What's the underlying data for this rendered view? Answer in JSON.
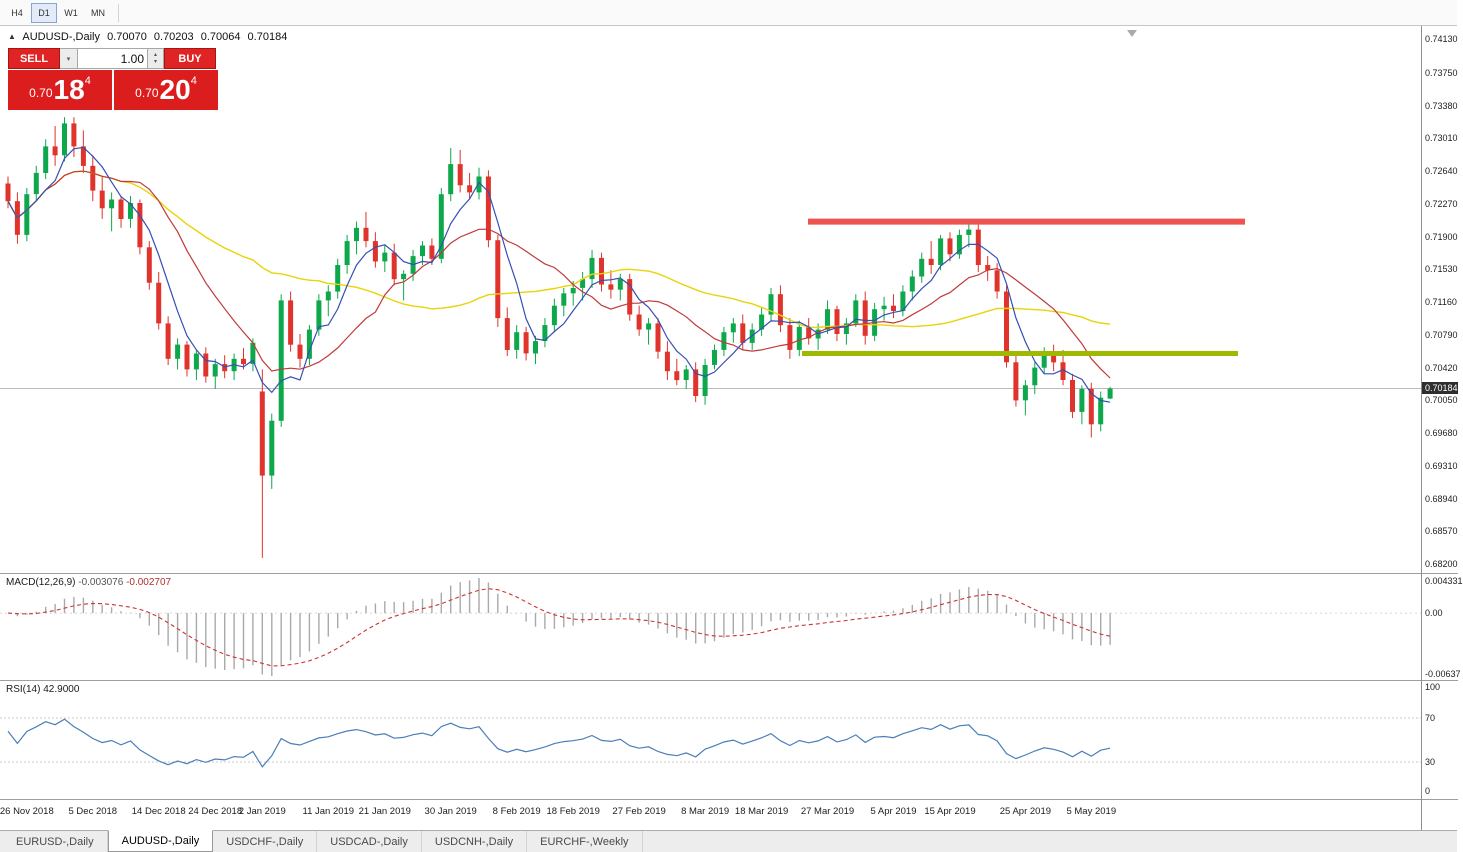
{
  "toolbar": {
    "timeframes": [
      {
        "label": "H4",
        "active": false
      },
      {
        "label": "D1",
        "active": true
      },
      {
        "label": "W1",
        "active": false
      },
      {
        "label": "MN",
        "active": false
      }
    ]
  },
  "title": {
    "symbol": "AUDUSD-,Daily",
    "open": "0.70070",
    "high": "0.70203",
    "low": "0.70064",
    "close": "0.70184"
  },
  "trade_panel": {
    "sell_label": "SELL",
    "buy_label": "BUY",
    "volume": "1.00",
    "sell_price": {
      "prefix": "0.70",
      "big": "18",
      "sup": "4"
    },
    "buy_price": {
      "prefix": "0.70",
      "big": "20",
      "sup": "4"
    }
  },
  "price_scale": {
    "labels": [
      "0.74130",
      "0.73750",
      "0.73380",
      "0.73010",
      "0.72640",
      "0.72270",
      "0.71900",
      "0.71530",
      "0.71160",
      "0.70790",
      "0.70420",
      "0.70050",
      "0.69680",
      "0.69310",
      "0.68940",
      "0.68570",
      "0.68200"
    ],
    "current": "0.70184"
  },
  "macd_panel": {
    "name": "MACD(12,26,9)",
    "value1": "-0.003076",
    "value2": "-0.002707",
    "scale_max": "0.004331",
    "scale_zero": "0.00",
    "scale_min": "-0.00637"
  },
  "rsi_panel": {
    "name": "RSI(14)",
    "value": "42.9000",
    "scale_labels": [
      "100",
      "70",
      "30",
      "0"
    ],
    "level_lines": [
      70,
      30
    ]
  },
  "xaxis": [
    {
      "label": "26 Nov 2018",
      "i": 2
    },
    {
      "label": "5 Dec 2018",
      "i": 9
    },
    {
      "label": "14 Dec 2018",
      "i": 16
    },
    {
      "label": "24 Dec 2018",
      "i": 22
    },
    {
      "label": "2 Jan 2019",
      "i": 27
    },
    {
      "label": "11 Jan 2019",
      "i": 34
    },
    {
      "label": "21 Jan 2019",
      "i": 40
    },
    {
      "label": "30 Jan 2019",
      "i": 47
    },
    {
      "label": "8 Feb 2019",
      "i": 54
    },
    {
      "label": "18 Feb 2019",
      "i": 60
    },
    {
      "label": "27 Feb 2019",
      "i": 67
    },
    {
      "label": "8 Mar 2019",
      "i": 74
    },
    {
      "label": "18 Mar 2019",
      "i": 80
    },
    {
      "label": "27 Mar 2019",
      "i": 87
    },
    {
      "label": "5 Apr 2019",
      "i": 94
    },
    {
      "label": "15 Apr 2019",
      "i": 100
    },
    {
      "label": "25 Apr 2019",
      "i": 108
    },
    {
      "label": "5 May 2019",
      "i": 115
    }
  ],
  "tabs": [
    {
      "label": "EURUSD-,Daily",
      "active": false
    },
    {
      "label": "AUDUSD-,Daily",
      "active": true
    },
    {
      "label": "USDCHF-,Daily",
      "active": false
    },
    {
      "label": "USDCAD-,Daily",
      "active": false
    },
    {
      "label": "USDCNH-,Daily",
      "active": false
    },
    {
      "label": "EURCHF-,Weekly",
      "active": false
    }
  ],
  "chart_data": {
    "type": "candlestick",
    "symbol": "AUDUSD",
    "timeframe": "Daily",
    "title": "AUDUSD-,Daily 0.70070 0.70203 0.70064 0.70184",
    "x_range": [
      "26 Nov 2018",
      "8 May 2019"
    ],
    "y_range": [
      0.682,
      0.7413
    ],
    "current_price": 0.70184,
    "candles": [
      [
        0.725,
        0.7258,
        0.7222,
        0.723
      ],
      [
        0.723,
        0.724,
        0.7182,
        0.7192
      ],
      [
        0.7192,
        0.7245,
        0.7185,
        0.7238
      ],
      [
        0.7238,
        0.727,
        0.723,
        0.7262
      ],
      [
        0.7262,
        0.73,
        0.7255,
        0.7292
      ],
      [
        0.7292,
        0.7315,
        0.727,
        0.7282
      ],
      [
        0.7282,
        0.7325,
        0.7275,
        0.7318
      ],
      [
        0.7318,
        0.7325,
        0.728,
        0.7292
      ],
      [
        0.7292,
        0.731,
        0.7262,
        0.727
      ],
      [
        0.727,
        0.7282,
        0.723,
        0.7242
      ],
      [
        0.7242,
        0.7258,
        0.721,
        0.7222
      ],
      [
        0.7222,
        0.724,
        0.7196,
        0.7232
      ],
      [
        0.7232,
        0.7236,
        0.72,
        0.721
      ],
      [
        0.721,
        0.7236,
        0.72,
        0.7228
      ],
      [
        0.7228,
        0.7232,
        0.717,
        0.7178
      ],
      [
        0.7178,
        0.7185,
        0.713,
        0.7138
      ],
      [
        0.7138,
        0.715,
        0.7085,
        0.7092
      ],
      [
        0.7092,
        0.71,
        0.7045,
        0.7052
      ],
      [
        0.7052,
        0.7075,
        0.704,
        0.7068
      ],
      [
        0.7068,
        0.7072,
        0.7032,
        0.704
      ],
      [
        0.704,
        0.7062,
        0.7028,
        0.7058
      ],
      [
        0.7058,
        0.7065,
        0.7025,
        0.7032
      ],
      [
        0.7032,
        0.7052,
        0.7018,
        0.7046
      ],
      [
        0.7046,
        0.7056,
        0.703,
        0.7038
      ],
      [
        0.7038,
        0.7058,
        0.7028,
        0.7052
      ],
      [
        0.7052,
        0.7064,
        0.704,
        0.7046
      ],
      [
        0.7046,
        0.7075,
        0.7038,
        0.707
      ],
      [
        0.7015,
        0.704,
        0.6827,
        0.692
      ],
      [
        0.692,
        0.699,
        0.6905,
        0.6982
      ],
      [
        0.6982,
        0.7125,
        0.6975,
        0.7118
      ],
      [
        0.7118,
        0.7128,
        0.706,
        0.7068
      ],
      [
        0.7068,
        0.708,
        0.7042,
        0.7052
      ],
      [
        0.7052,
        0.709,
        0.7045,
        0.7085
      ],
      [
        0.7085,
        0.7125,
        0.7078,
        0.7118
      ],
      [
        0.7118,
        0.7135,
        0.71,
        0.7128
      ],
      [
        0.7128,
        0.7165,
        0.712,
        0.7158
      ],
      [
        0.7158,
        0.7192,
        0.7148,
        0.7185
      ],
      [
        0.7185,
        0.7207,
        0.717,
        0.72
      ],
      [
        0.72,
        0.7218,
        0.7178,
        0.7185
      ],
      [
        0.7185,
        0.7195,
        0.7155,
        0.7162
      ],
      [
        0.7162,
        0.718,
        0.715,
        0.7172
      ],
      [
        0.7172,
        0.7182,
        0.7135,
        0.7142
      ],
      [
        0.7142,
        0.7152,
        0.7118,
        0.7148
      ],
      [
        0.7148,
        0.7175,
        0.714,
        0.7168
      ],
      [
        0.7168,
        0.7185,
        0.7158,
        0.718
      ],
      [
        0.718,
        0.7188,
        0.7158,
        0.7165
      ],
      [
        0.7165,
        0.7245,
        0.716,
        0.7238
      ],
      [
        0.7238,
        0.729,
        0.723,
        0.7272
      ],
      [
        0.7272,
        0.7288,
        0.724,
        0.7248
      ],
      [
        0.7248,
        0.7262,
        0.7232,
        0.724
      ],
      [
        0.724,
        0.7268,
        0.7232,
        0.7258
      ],
      [
        0.7258,
        0.7265,
        0.7178,
        0.7186
      ],
      [
        0.7186,
        0.7192,
        0.7088,
        0.7098
      ],
      [
        0.7098,
        0.711,
        0.7055,
        0.7062
      ],
      [
        0.7062,
        0.709,
        0.7052,
        0.7082
      ],
      [
        0.7082,
        0.7088,
        0.705,
        0.7058
      ],
      [
        0.7058,
        0.7078,
        0.7046,
        0.7072
      ],
      [
        0.7072,
        0.7098,
        0.7065,
        0.709
      ],
      [
        0.709,
        0.712,
        0.7082,
        0.7112
      ],
      [
        0.7112,
        0.7132,
        0.71,
        0.7126
      ],
      [
        0.7126,
        0.714,
        0.7112,
        0.7132
      ],
      [
        0.7132,
        0.715,
        0.7118,
        0.7142
      ],
      [
        0.7142,
        0.7175,
        0.7132,
        0.7166
      ],
      [
        0.7166,
        0.7172,
        0.7128,
        0.7136
      ],
      [
        0.7136,
        0.7152,
        0.712,
        0.713
      ],
      [
        0.713,
        0.7148,
        0.7118,
        0.7142
      ],
      [
        0.7142,
        0.7148,
        0.7095,
        0.7102
      ],
      [
        0.7102,
        0.7112,
        0.7078,
        0.7085
      ],
      [
        0.7085,
        0.7098,
        0.7068,
        0.7092
      ],
      [
        0.7092,
        0.7098,
        0.7052,
        0.706
      ],
      [
        0.706,
        0.7072,
        0.7028,
        0.7038
      ],
      [
        0.7038,
        0.7052,
        0.7022,
        0.7028
      ],
      [
        0.7028,
        0.7045,
        0.7018,
        0.704
      ],
      [
        0.704,
        0.7048,
        0.7003,
        0.701
      ],
      [
        0.701,
        0.7052,
        0.7,
        0.7045
      ],
      [
        0.7045,
        0.7068,
        0.704,
        0.7062
      ],
      [
        0.7062,
        0.7088,
        0.7055,
        0.7082
      ],
      [
        0.7082,
        0.7098,
        0.707,
        0.7092
      ],
      [
        0.7092,
        0.7102,
        0.7062,
        0.707
      ],
      [
        0.707,
        0.7092,
        0.7062,
        0.7085
      ],
      [
        0.7085,
        0.711,
        0.7078,
        0.7102
      ],
      [
        0.7102,
        0.7132,
        0.7095,
        0.7125
      ],
      [
        0.7125,
        0.7135,
        0.7082,
        0.709
      ],
      [
        0.709,
        0.7098,
        0.7052,
        0.7062
      ],
      [
        0.7062,
        0.7095,
        0.7055,
        0.7088
      ],
      [
        0.7088,
        0.7098,
        0.7068,
        0.7075
      ],
      [
        0.7075,
        0.7092,
        0.7062,
        0.7085
      ],
      [
        0.7085,
        0.7118,
        0.708,
        0.7108
      ],
      [
        0.7108,
        0.7112,
        0.7072,
        0.708
      ],
      [
        0.708,
        0.7098,
        0.7068,
        0.7092
      ],
      [
        0.7092,
        0.7125,
        0.7088,
        0.7118
      ],
      [
        0.7118,
        0.7128,
        0.7068,
        0.7078
      ],
      [
        0.7078,
        0.7115,
        0.7072,
        0.7108
      ],
      [
        0.7108,
        0.7122,
        0.7095,
        0.7112
      ],
      [
        0.7112,
        0.7125,
        0.7098,
        0.7106
      ],
      [
        0.7106,
        0.7135,
        0.71,
        0.7128
      ],
      [
        0.7128,
        0.7152,
        0.7118,
        0.7145
      ],
      [
        0.7145,
        0.7172,
        0.7138,
        0.7165
      ],
      [
        0.7165,
        0.7185,
        0.7148,
        0.7158
      ],
      [
        0.7158,
        0.7192,
        0.7152,
        0.7188
      ],
      [
        0.7188,
        0.7195,
        0.7162,
        0.717
      ],
      [
        0.717,
        0.7198,
        0.7165,
        0.7192
      ],
      [
        0.7192,
        0.7206,
        0.7178,
        0.7198
      ],
      [
        0.7198,
        0.7205,
        0.715,
        0.7158
      ],
      [
        0.7158,
        0.7168,
        0.714,
        0.7152
      ],
      [
        0.7152,
        0.716,
        0.712,
        0.7128
      ],
      [
        0.7128,
        0.7135,
        0.7042,
        0.7048
      ],
      [
        0.7048,
        0.7055,
        0.6998,
        0.7005
      ],
      [
        0.7005,
        0.7028,
        0.6988,
        0.7022
      ],
      [
        0.7022,
        0.7048,
        0.7012,
        0.7042
      ],
      [
        0.7042,
        0.7065,
        0.7035,
        0.7058
      ],
      [
        0.7058,
        0.7068,
        0.7038,
        0.7048
      ],
      [
        0.7048,
        0.7062,
        0.7022,
        0.7028
      ],
      [
        0.7028,
        0.7035,
        0.6985,
        0.6992
      ],
      [
        0.6992,
        0.7022,
        0.6978,
        0.7018
      ],
      [
        0.7018,
        0.7025,
        0.6963,
        0.6978
      ],
      [
        0.6978,
        0.7015,
        0.697,
        0.7008
      ],
      [
        0.7007,
        0.70203,
        0.70064,
        0.70184
      ]
    ],
    "levels": [
      {
        "name": "resistance",
        "price": 0.7207,
        "x1": 0.5686,
        "x2": 0.8761,
        "color": "#ef5350",
        "width": 6
      },
      {
        "name": "support",
        "price": 0.7058,
        "x1": 0.5644,
        "x2": 0.8712,
        "color": "#9fb800",
        "width": 5
      }
    ],
    "moving_averages": [
      {
        "period": 5,
        "color_key": "ma_fast"
      },
      {
        "period": 13,
        "color_key": "ma_mid"
      },
      {
        "period": 34,
        "color_key": "ma_slow"
      }
    ],
    "indicators": [
      {
        "type": "MACD",
        "fast": 12,
        "slow": 26,
        "signal": 9,
        "last_values": [
          -0.003076,
          -0.002707
        ]
      },
      {
        "type": "RSI",
        "period": 14,
        "last_value": 42.9
      }
    ],
    "colors": {
      "up": "#0ca84b",
      "down": "#df332b",
      "ma_fast": "#3450b4",
      "ma_mid": "#c03a3a",
      "ma_slow": "#e8d40a",
      "macd_bar": "#a9a9a9",
      "macd_signal": "#cc3333",
      "rsi": "#4a7ebb",
      "current_price_line": "#bcbcbc"
    }
  }
}
